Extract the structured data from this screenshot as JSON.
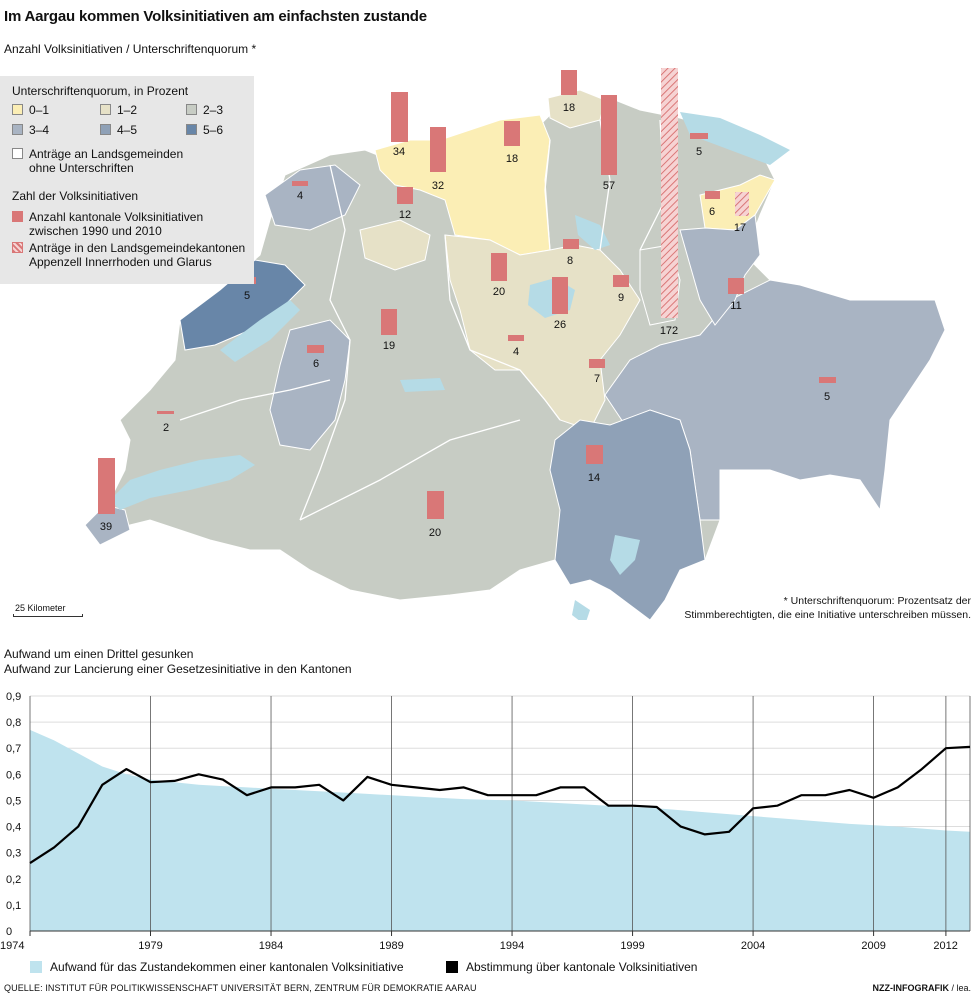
{
  "header": {
    "title": "Im Aargau kommen Volksinitiativen am einfachsten zustande",
    "subtitle": "Anzahl Volksinitiativen / Unterschriftenquorum *"
  },
  "legend": {
    "quorum_title": "Unterschriftenquorum, in Prozent",
    "quorum_items": [
      {
        "label": "0–1",
        "color": "#fbeeb5"
      },
      {
        "label": "1–2",
        "color": "#e6e1c7"
      },
      {
        "label": "2–3",
        "color": "#c7ccc4"
      },
      {
        "label": "3–4",
        "color": "#a9b4c3"
      },
      {
        "label": "4–5",
        "color": "#8fa1b7"
      },
      {
        "label": "5–6",
        "color": "#6886a8"
      }
    ],
    "landsgemeinde_label": "Anträge an Landsgemeinden ohne Unterschriften",
    "count_title": "Zahl der Volksinitiativen",
    "count_item": "Anzahl kantonale Volksinitiativen zwischen 1990 und 2010",
    "hatch_item": "Anträge in den Landsgemeindekantonen Appenzell Innerrhoden und Glarus",
    "bar_color": "#d97777",
    "lake_color": "#b5dbe6"
  },
  "map": {
    "bars": [
      {
        "canton": "BS",
        "value": "34"
      },
      {
        "canton": "BL",
        "value": "32"
      },
      {
        "canton": "AG",
        "value": "18"
      },
      {
        "canton": "SH",
        "value": "18"
      },
      {
        "canton": "ZH",
        "value": "57"
      },
      {
        "canton": "GL",
        "value": "172"
      },
      {
        "canton": "TG",
        "value": "5"
      },
      {
        "canton": "AR",
        "value": "6"
      },
      {
        "canton": "AI",
        "value": "17"
      },
      {
        "canton": "JU",
        "value": "4"
      },
      {
        "canton": "SO",
        "value": "12"
      },
      {
        "canton": "ZG",
        "value": "8"
      },
      {
        "canton": "LU",
        "value": "20"
      },
      {
        "canton": "SZ",
        "value": "9"
      },
      {
        "canton": "SG",
        "value": "11"
      },
      {
        "canton": "NE",
        "value": "5"
      },
      {
        "canton": "NW",
        "value": "26"
      },
      {
        "canton": "BE",
        "value": "19"
      },
      {
        "canton": "FR",
        "value": "6"
      },
      {
        "canton": "OW",
        "value": "4"
      },
      {
        "canton": "UR",
        "value": "7"
      },
      {
        "canton": "GR",
        "value": "5"
      },
      {
        "canton": "VD",
        "value": "2"
      },
      {
        "canton": "TI",
        "value": "14"
      },
      {
        "canton": "GE",
        "value": "39"
      },
      {
        "canton": "VS",
        "value": "20"
      }
    ],
    "scale_label": "25 Kilometer",
    "footnote_line1": "* Unterschriftenquorum: Prozentsatz der",
    "footnote_line2": "Stimmberechtigten, die eine Initiative unterschreiben müssen."
  },
  "section": {
    "title": "Aufwand um einen Drittel gesunken",
    "subtitle": "Aufwand zur Lancierung einer Gesetzesinitiative in den Kantonen"
  },
  "chart_data": {
    "type": "line",
    "title": "Aufwand um einen Drittel gesunken",
    "subtitle": "Aufwand zur Lancierung einer Gesetzesinitiative in den Kantonen",
    "x_ticks": [
      "1974",
      "1979",
      "1984",
      "1989",
      "1994",
      "1999",
      "2004",
      "2009",
      "2012"
    ],
    "y_ticks": [
      "0",
      "0,1",
      "0,2",
      "0,3",
      "0,4",
      "0,5",
      "0,6",
      "0,7",
      "0,8",
      "0,9"
    ],
    "xlim": [
      1974,
      2013
    ],
    "ylim": [
      0,
      0.9
    ],
    "grid": "vertical",
    "legend_position": "bottom",
    "series": [
      {
        "name": "Aufwand für das Zustandekommen einer kantonalen Volksinitiative",
        "type": "area",
        "color": "#bfe3ee",
        "x": [
          1974,
          1975,
          1976,
          1977,
          1978,
          1979,
          1980,
          1981,
          1982,
          1983,
          1984,
          1986,
          1988,
          1990,
          1992,
          1994,
          1996,
          1998,
          2000,
          2002,
          2004,
          2006,
          2008,
          2010,
          2012,
          2013
        ],
        "y": [
          0.77,
          0.73,
          0.68,
          0.63,
          0.6,
          0.58,
          0.57,
          0.56,
          0.555,
          0.55,
          0.545,
          0.535,
          0.525,
          0.515,
          0.505,
          0.5,
          0.49,
          0.48,
          0.47,
          0.455,
          0.44,
          0.425,
          0.41,
          0.4,
          0.385,
          0.38
        ]
      },
      {
        "name": "Abstimmung über kantonale Volksinitiativen",
        "type": "line",
        "color": "#000000",
        "x": [
          1974,
          1975,
          1976,
          1977,
          1978,
          1979,
          1980,
          1981,
          1982,
          1983,
          1984,
          1985,
          1986,
          1987,
          1988,
          1989,
          1990,
          1991,
          1992,
          1993,
          1994,
          1995,
          1996,
          1997,
          1998,
          1999,
          2000,
          2001,
          2002,
          2003,
          2004,
          2005,
          2006,
          2007,
          2008,
          2009,
          2010,
          2011,
          2012,
          2013
        ],
        "y": [
          0.26,
          0.32,
          0.4,
          0.56,
          0.62,
          0.57,
          0.575,
          0.6,
          0.58,
          0.52,
          0.55,
          0.55,
          0.56,
          0.5,
          0.59,
          0.56,
          0.55,
          0.54,
          0.55,
          0.52,
          0.52,
          0.52,
          0.55,
          0.55,
          0.48,
          0.48,
          0.475,
          0.4,
          0.37,
          0.38,
          0.47,
          0.48,
          0.52,
          0.52,
          0.54,
          0.51,
          0.55,
          0.62,
          0.7,
          0.705
        ]
      }
    ]
  },
  "footer": {
    "source": "QUELLE: INSTITUT FÜR POLITIKWISSENSCHAFT UNIVERSITÄT BERN, ZENTRUM FÜR DEMOKRATIE AARAU",
    "credit_bold": "NZZ-INFOGRAFIK",
    "credit_rest": "/ lea."
  }
}
